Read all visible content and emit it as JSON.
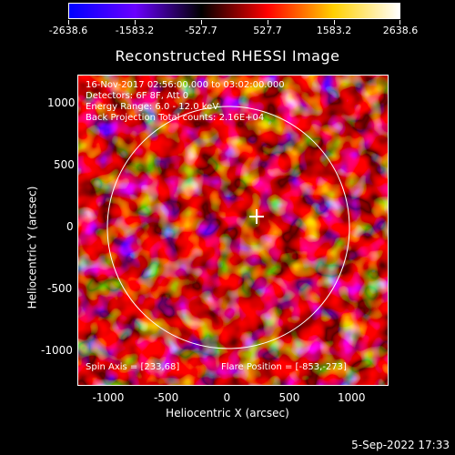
{
  "colorbar": {
    "labels": [
      "-2638.6",
      "-1583.2",
      "-527.7",
      "527.7",
      "1583.2",
      "2638.6"
    ],
    "colors": [
      "#0000ff",
      "#6a00ff",
      "#000000",
      "#ff0000",
      "#ffd000",
      "#ffffff"
    ]
  },
  "title": "Reconstructed RHESSI Image",
  "info": {
    "line1": "16-Nov-2017 02:56:00.000 to 03:02:00.000",
    "line2": "Detectors: 6F 8F, Att 0",
    "line3": "Energy Range: 6.0 - 12.0 keV",
    "line4": "Back Projection    Total counts: 2.16E+04"
  },
  "footer": {
    "spin_axis": "Spin Axis = [233,68]",
    "flare_position": "Flare Position = [-853,-273]"
  },
  "axes": {
    "xlabel": "Heliocentric X (arcsec)",
    "ylabel": "Heliocentric Y (arcsec)",
    "xticks": [
      "-1000",
      "-500",
      "0",
      "500",
      "1000"
    ],
    "yticks": [
      "1000",
      "500",
      "0",
      "-500",
      "-1000"
    ]
  },
  "date": "5-Sep-2022 17:33"
}
